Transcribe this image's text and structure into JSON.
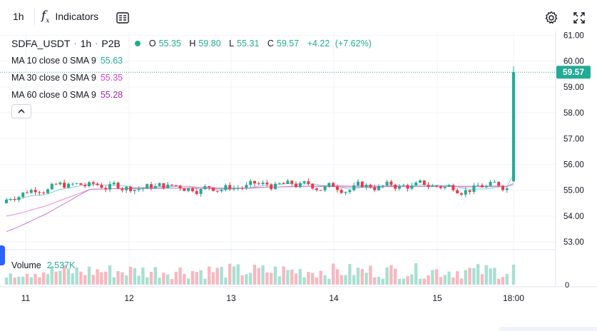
{
  "toolbar": {
    "interval": "1h",
    "indicators_label": "Indicators",
    "fx_label": "f",
    "fx_sub": "x"
  },
  "legend": {
    "symbol": "SDFA_USDT",
    "dot1": "·",
    "interval": "1h",
    "dot2": "·",
    "exchange": "P2B",
    "ohlc": {
      "o_label": "O",
      "o": "55.35",
      "h_label": "H",
      "h": "59.80",
      "l_label": "L",
      "l": "55.31",
      "c_label": "C",
      "c": "59.57",
      "change": "+4.22",
      "change_pct": "(+7.62%)"
    },
    "ma": [
      {
        "label": "MA 10 close 0 SMA 9",
        "value": "55.63",
        "color": "#26a69a"
      },
      {
        "label": "MA 30 close 0 SMA 9",
        "value": "55.35",
        "color": "#e040c8"
      },
      {
        "label": "MA 60 close 0 SMA 9",
        "value": "55.28",
        "color": "#9c27b0"
      }
    ],
    "volume_label": "Volume",
    "volume_value": "2.537K"
  },
  "colors": {
    "up": "#22ab94",
    "down": "#f23645",
    "up_vol": "#a8e0d2",
    "down_vol": "#f7b8bf",
    "price_tag": "#22ab94"
  },
  "chart_data": {
    "type": "candlestick",
    "y_ticks": [
      "61.00",
      "60.00",
      "59.00",
      "58.00",
      "57.00",
      "56.00",
      "55.00",
      "54.00",
      "53.00"
    ],
    "ylim": [
      52.7,
      61.15
    ],
    "last_price": "59.57",
    "x_ticks": [
      "11",
      "12",
      "13",
      "14",
      "15",
      "18:00"
    ],
    "volume_tick": "0",
    "candles_note": "",
    "last_candle": {
      "o": 55.35,
      "h": 59.8,
      "l": 55.31,
      "c": 59.57
    }
  }
}
